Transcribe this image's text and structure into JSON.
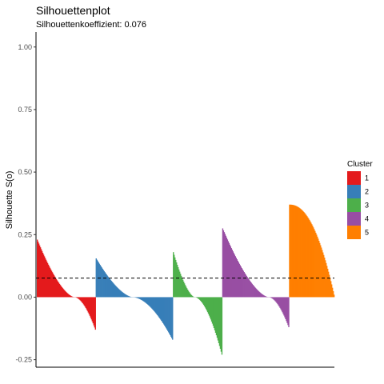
{
  "chart_data": {
    "type": "bar",
    "title": "Silhouettenplot",
    "subtitle": "Silhouettenkoeffizient: 0.076",
    "ylabel": "Silhouette S(o)",
    "xlabel": "",
    "ylim": [
      -0.28,
      1.06
    ],
    "yticks": [
      1.0,
      0.75,
      0.5,
      0.25,
      0.0,
      -0.25
    ],
    "ytick_labels": [
      "1.00",
      "0.75",
      "0.50",
      "0.25",
      "0.00",
      "-0.25"
    ],
    "reference_line": {
      "value": 0.076,
      "style": "dashed"
    },
    "legend": {
      "title": "Cluster",
      "position": "right"
    },
    "series": [
      {
        "name": "1",
        "color": "#E41A1C",
        "max": 0.23,
        "min": -0.13,
        "n": 74
      },
      {
        "name": "2",
        "color": "#377EB8",
        "max": 0.155,
        "min": -0.17,
        "n": 97
      },
      {
        "name": "3",
        "color": "#4DAF4A",
        "max": 0.18,
        "min": -0.23,
        "n": 62
      },
      {
        "name": "4",
        "color": "#984EA3",
        "max": 0.275,
        "min": -0.12,
        "n": 84
      },
      {
        "name": "5",
        "color": "#FF7F00",
        "max": 0.37,
        "min": 0.01,
        "n": 57
      }
    ]
  }
}
